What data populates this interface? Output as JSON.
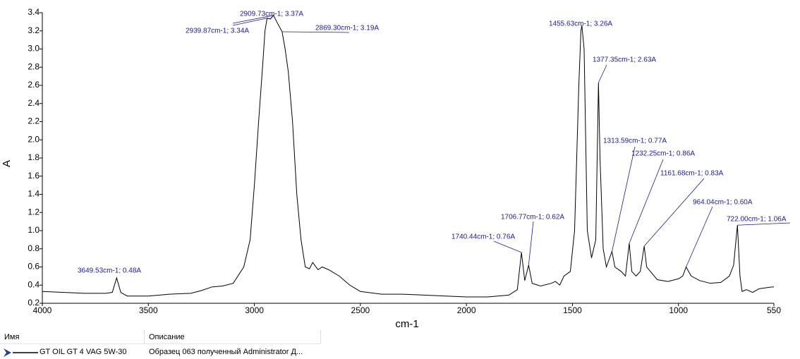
{
  "chart_data": {
    "type": "line",
    "xlabel": "cm-1",
    "ylabel": "A",
    "xlim": [
      4000,
      550
    ],
    "ylim": [
      0.2,
      3.4
    ],
    "xticks": [
      4000,
      3500,
      3000,
      2500,
      2000,
      1500,
      1000,
      550
    ],
    "yticks": [
      0.2,
      0.4,
      0.6,
      0.8,
      {
        "value": 1,
        "label": "1.0"
      },
      1.2,
      1.4,
      1.6,
      1.8,
      {
        "value": 2,
        "label": "2.0"
      },
      2.2,
      2.4,
      2.6,
      2.8,
      {
        "value": 3,
        "label": "3.0"
      },
      3.2,
      3.4
    ],
    "x": [
      4000,
      3800,
      3700,
      3670,
      3649.53,
      3630,
      3600,
      3500,
      3400,
      3300,
      3250,
      3200,
      3150,
      3100,
      3050,
      3020,
      3000,
      2980,
      2960,
      2950,
      2939.87,
      2925,
      2909.73,
      2890,
      2869.3,
      2855,
      2840,
      2820,
      2800,
      2780,
      2760,
      2740,
      2725,
      2700,
      2680,
      2650,
      2600,
      2550,
      2500,
      2400,
      2300,
      2200,
      2100,
      2000,
      1900,
      1800,
      1760,
      1740.44,
      1725,
      1706.77,
      1690,
      1650,
      1600,
      1580,
      1560,
      1540,
      1510,
      1490,
      1470,
      1460,
      1455.63,
      1445,
      1430,
      1410,
      1390,
      1377.35,
      1370,
      1355,
      1340,
      1313.59,
      1300,
      1270,
      1250,
      1232.25,
      1220,
      1200,
      1180,
      1161.68,
      1150,
      1100,
      1050,
      1000,
      980,
      964.04,
      940,
      900,
      850,
      800,
      760,
      740,
      722,
      710,
      700,
      680,
      650,
      620,
      590,
      560,
      550
    ],
    "series": [
      {
        "name": "GT OIL GT 4 VAG 5W-30",
        "color": "#000000",
        "values": [
          0.33,
          0.31,
          0.31,
          0.32,
          0.48,
          0.32,
          0.28,
          0.28,
          0.3,
          0.31,
          0.34,
          0.38,
          0.39,
          0.42,
          0.6,
          0.9,
          1.5,
          2.2,
          2.85,
          3.2,
          3.34,
          3.33,
          3.37,
          3.28,
          3.19,
          3.0,
          2.75,
          2.2,
          1.4,
          0.9,
          0.6,
          0.58,
          0.65,
          0.57,
          0.6,
          0.57,
          0.5,
          0.4,
          0.33,
          0.3,
          0.3,
          0.29,
          0.28,
          0.27,
          0.27,
          0.29,
          0.35,
          0.76,
          0.45,
          0.62,
          0.42,
          0.39,
          0.42,
          0.44,
          0.4,
          0.5,
          0.55,
          1.0,
          2.6,
          3.2,
          3.26,
          3.0,
          1.0,
          0.7,
          0.9,
          2.63,
          1.8,
          0.8,
          0.6,
          0.77,
          0.6,
          0.55,
          0.5,
          0.86,
          0.55,
          0.5,
          0.55,
          0.83,
          0.6,
          0.46,
          0.44,
          0.47,
          0.5,
          0.6,
          0.5,
          0.45,
          0.42,
          0.43,
          0.5,
          0.62,
          1.06,
          0.5,
          0.33,
          0.35,
          0.32,
          0.36,
          0.37,
          0.38,
          0.38
        ]
      }
    ],
    "annotations": [
      {
        "label": "3649.53cm-1; 0.48A",
        "x": 3649.53,
        "y": 0.48
      },
      {
        "label": "2909.73cm-1; 3.37A",
        "x": 2909.73,
        "y": 3.37
      },
      {
        "label": "2939.87cm-1; 3.34A",
        "x": 2939.87,
        "y": 3.34
      },
      {
        "label": "2869.30cm-1; 3.19A",
        "x": 2869.3,
        "y": 3.19
      },
      {
        "label": "1455.63cm-1; 3.26A",
        "x": 1455.63,
        "y": 3.26
      },
      {
        "label": "1377.35cm-1; 2.63A",
        "x": 1377.35,
        "y": 2.63
      },
      {
        "label": "1313.59cm-1; 0.77A",
        "x": 1313.59,
        "y": 0.77
      },
      {
        "label": "1232.25cm-1; 0.86A",
        "x": 1232.25,
        "y": 0.86
      },
      {
        "label": "1161.68cm-1; 0.83A",
        "x": 1161.68,
        "y": 0.83
      },
      {
        "label": "964.04cm-1; 0.60A",
        "x": 964.04,
        "y": 0.6
      },
      {
        "label": "722.00cm-1; 1.06A",
        "x": 722,
        "y": 1.06
      },
      {
        "label": "1706.77cm-1; 0.62A",
        "x": 1706.77,
        "y": 0.62
      },
      {
        "label": "1740.44cm-1; 0.76A",
        "x": 1740.44,
        "y": 0.76
      }
    ]
  },
  "table": {
    "headers": [
      "Имя",
      "Описание"
    ],
    "description": "Образец 063 полученный Administrator Д..."
  }
}
